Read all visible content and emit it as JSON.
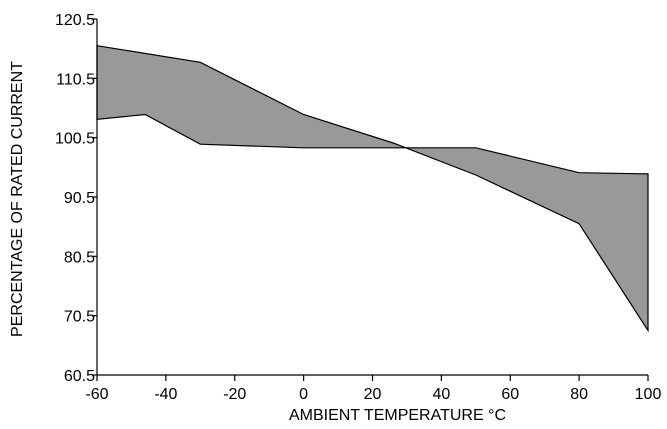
{
  "chart_data": {
    "type": "area",
    "xlabel": "AMBIENT TEMPERATURE °C",
    "ylabel": "PERCENTAGE OF RATED CURRENT",
    "xlim": [
      -60,
      100
    ],
    "ylim": [
      60.5,
      120.5
    ],
    "x_ticks": [
      -60,
      -40,
      -20,
      0,
      20,
      40,
      60,
      80,
      100
    ],
    "y_ticks": [
      60.5,
      70.5,
      80.5,
      90.5,
      100.5,
      110.5,
      120.5
    ],
    "x_tick_labels": [
      "-60",
      "-40",
      "-20",
      "0",
      "20",
      "40",
      "60",
      "80",
      "100"
    ],
    "y_tick_labels": [
      "60.5",
      "70.5",
      "80.5",
      "90.5",
      "100.5",
      "110.5",
      "120.5"
    ],
    "grid": false,
    "fill_color": "#999999",
    "series": [
      {
        "points": [
          [
            -60,
            116.0
          ],
          [
            -30,
            113.2
          ],
          [
            0,
            104.4
          ],
          [
            26,
            99.6
          ],
          [
            50,
            94.2
          ],
          [
            80,
            86.0
          ],
          [
            100,
            68.0
          ]
        ]
      },
      {
        "points": [
          [
            -60,
            103.6
          ],
          [
            -46,
            104.4
          ],
          [
            -30,
            99.4
          ],
          [
            0,
            98.8
          ],
          [
            26,
            98.8
          ],
          [
            50,
            98.8
          ],
          [
            80,
            94.6
          ],
          [
            100,
            94.4
          ]
        ]
      }
    ]
  }
}
